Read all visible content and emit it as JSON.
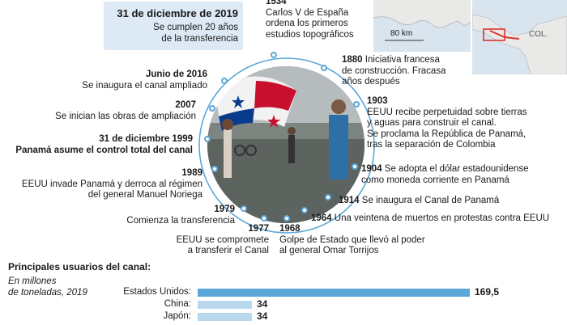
{
  "header": {
    "date": "31 de diciembre de 2019",
    "line1": "Se cumplen 20 años",
    "line2": "de la transferencia"
  },
  "map": {
    "scale_label": "80 km",
    "country_label": "COL."
  },
  "timeline": {
    "e1534": {
      "year": "1534",
      "l1": "Carlos V de España",
      "l2": "ordena los primeros",
      "l3": "estudios topográficos"
    },
    "e1880": {
      "year": "1880",
      "t1": "Iniciativa francesa",
      "l2": "de construcción. Fracasa",
      "l3": "años después"
    },
    "e1903": {
      "year": "1903",
      "l1": "EEUU recibe perpetuidad sobre tierras",
      "l2": "y aguas para construir el canal.",
      "l3": "Se proclama la República de Panamá,",
      "l4": "tras la separación de Colombia"
    },
    "e1904": {
      "year": "1904",
      "t1": "Se adopta el dólar estadounidense",
      "l2": "como moneda corriente en Panamá"
    },
    "e1914": {
      "year": "1914",
      "t1": "Se inaugura el Canal de Panamá"
    },
    "e1964": {
      "year": "1964",
      "t1": "Una veintena de muertos en protestas contra EEUU"
    },
    "e1968": {
      "year": "1968",
      "l1": "Golpe de Estado que llevó al poder",
      "l2": "al general Omar Torrijos"
    },
    "e1977": {
      "year": "1977",
      "l1": "EEUU se compromete",
      "l2": "a transferir el Canal"
    },
    "e1979": {
      "year": "1979",
      "l1": "Comienza la transferencia"
    },
    "e1989": {
      "year": "1989",
      "l1": "EEUU invade Panamá y derroca al régimen",
      "l2": "del general Manuel Noriega"
    },
    "e1999": {
      "year": "31 de diciembre 1999",
      "l1": "Panamá asume el control total del canal"
    },
    "e2007": {
      "year": "2007",
      "l1": "Se inician las obras de ampliación"
    },
    "e2016": {
      "year": "Junio de 2016",
      "l1": "Se inaugura el canal ampliado"
    }
  },
  "users": {
    "title": "Principales usuarios del canal:",
    "subtitle1": "En millones",
    "subtitle2": "de toneladas, 2019",
    "accent": "#5aa7d8",
    "light": "#b9d8ee"
  },
  "chart_data": {
    "type": "bar",
    "title": "Principales usuarios del canal:",
    "categories": [
      "Estados Unidos:",
      "China:",
      "Japón:"
    ],
    "values": [
      169.5,
      34,
      34
    ],
    "value_labels": [
      "169,5",
      "34",
      "34"
    ]
  }
}
